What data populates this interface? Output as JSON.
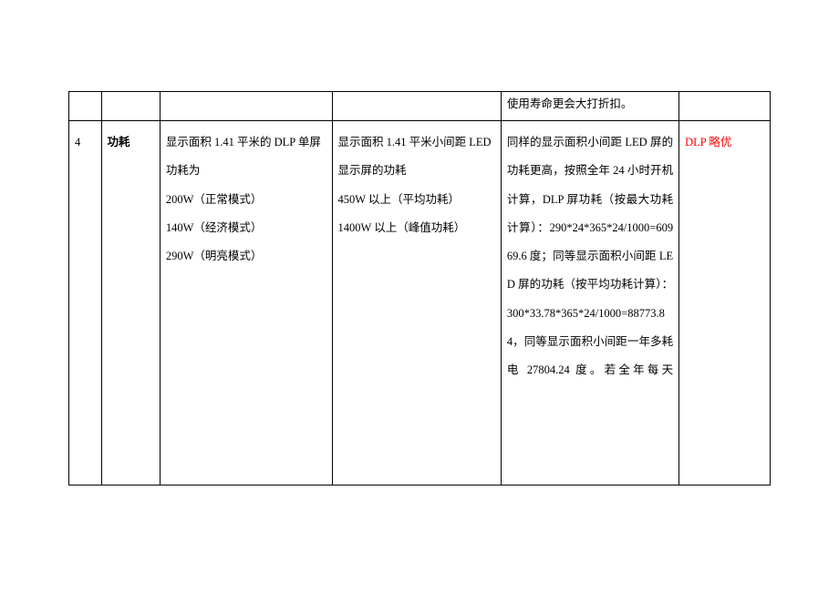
{
  "table": {
    "prev_row": {
      "compare_tail": "使用寿命更会大打折扣。"
    },
    "row": {
      "num": "4",
      "name": "功耗",
      "dlp": "显示面积 1.41 平米的 DLP 单屏功耗为\n200W（正常模式）\n140W（经济模式）\n290W（明亮模式）",
      "led": "显示面积 1.41 平米小间距 LED 显示屏的功耗\n450W 以上（平均功耗）\n1400W 以上（峰值功耗）",
      "compare": "同样的显示面积小间距 LED 屏的功耗更高，按照全年 24 小时开机计算，DLP 屏功耗（按最大功耗计算）：290*24*365*24/1000=60969.6 度；同等显示面积小间距 LED 屏的功耗（按平均功耗计算）：300*33.78*365*24/1000=88773.84，同等显示面积小间距一年多耗电 27804.24 度。若全年每天",
      "result": "DLP 略优"
    }
  },
  "styling": {
    "text_color": "#000000",
    "red_color": "#ff0000",
    "border_color": "#000000",
    "background": "#ffffff",
    "font_size": 12.5,
    "line_height": 2.5
  }
}
